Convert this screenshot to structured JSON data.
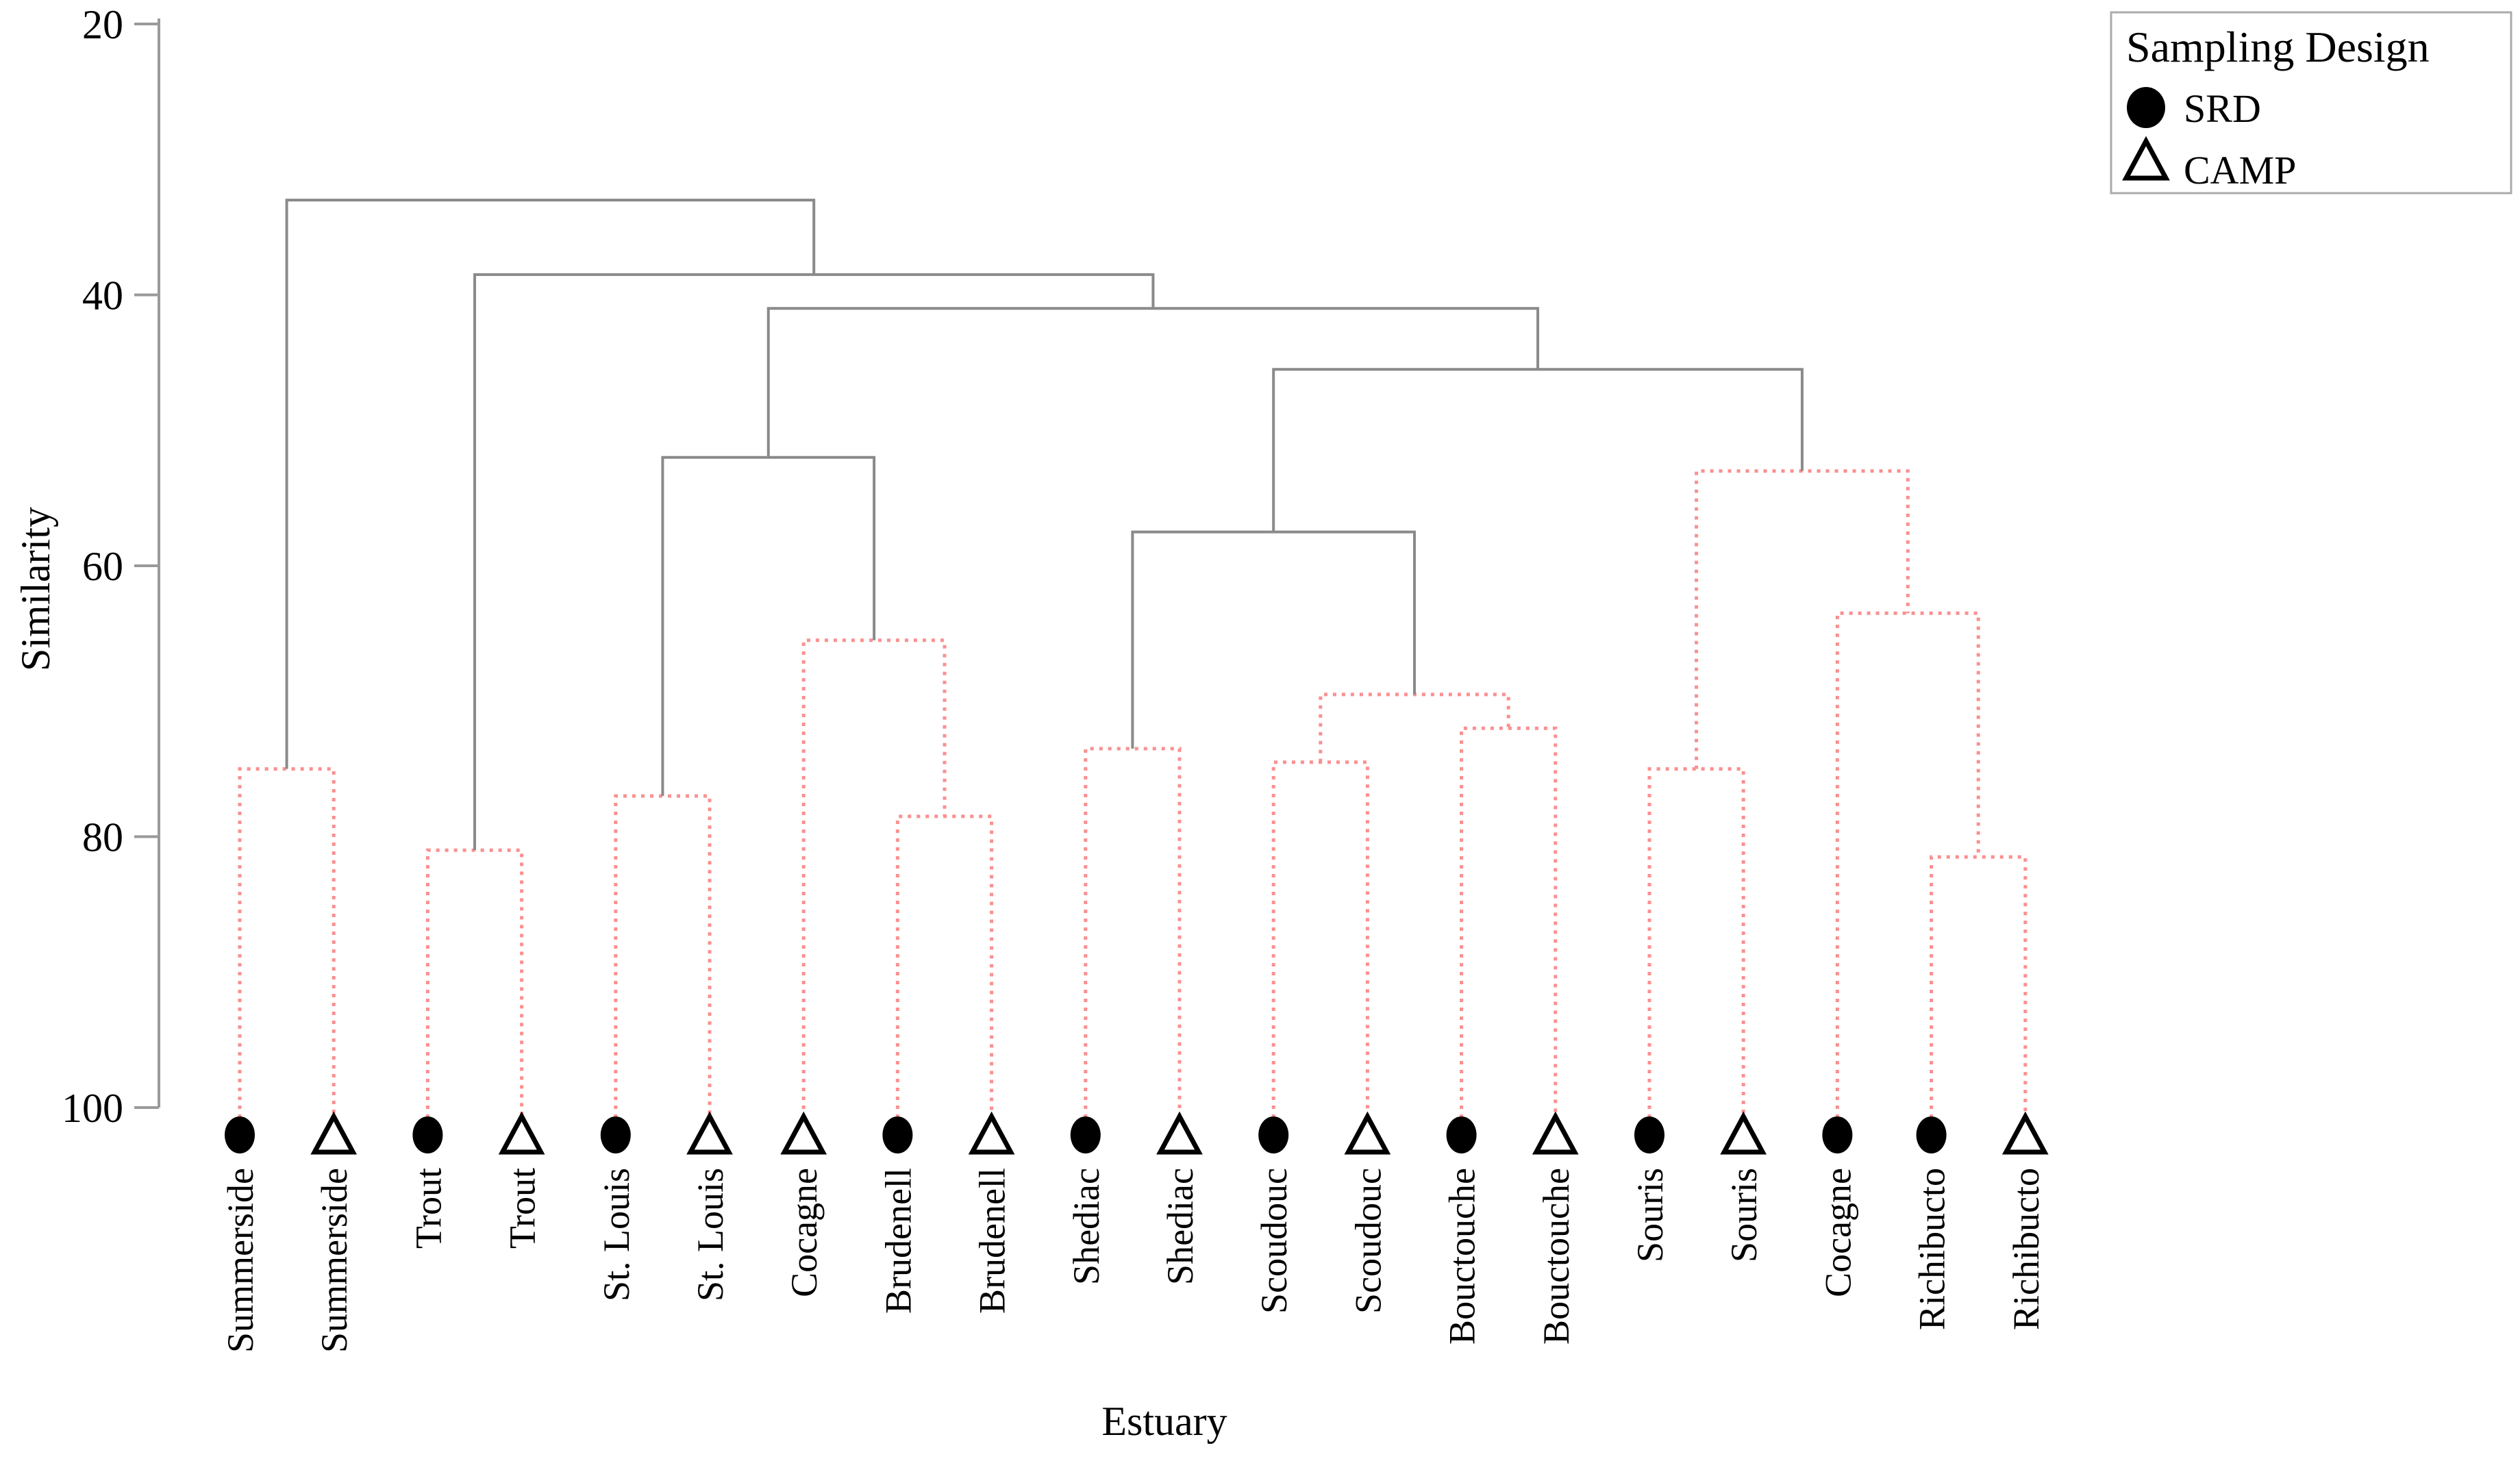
{
  "chart_data": {
    "type": "dendrogram",
    "title": "",
    "xlabel": "Estuary",
    "ylabel": "Similarity",
    "y_axis": {
      "min": 20,
      "max": 100,
      "ticks": [
        20,
        40,
        60,
        80,
        100
      ],
      "inverted": true,
      "grid": false
    },
    "legend": {
      "title": "Sampling Design",
      "position": "top-right",
      "entries": [
        {
          "marker": "filled-circle",
          "label": "SRD"
        },
        {
          "marker": "open-triangle",
          "label": "CAMP"
        }
      ]
    },
    "colors": {
      "marker": "#000000",
      "significant_branch": "#8a8a8a",
      "non_significant_branch": "#fb9090",
      "axis": "#9a9a9a",
      "legend_border": "#ababab",
      "text": "#000000"
    },
    "leaves": [
      {
        "label": "Summerside",
        "design": "SRD"
      },
      {
        "label": "Summerside",
        "design": "CAMP"
      },
      {
        "label": "Trout",
        "design": "SRD"
      },
      {
        "label": "Trout",
        "design": "CAMP"
      },
      {
        "label": "St. Louis",
        "design": "SRD"
      },
      {
        "label": "St. Louis",
        "design": "CAMP"
      },
      {
        "label": "Cocagne",
        "design": "CAMP"
      },
      {
        "label": "Brudenell",
        "design": "SRD"
      },
      {
        "label": "Brudenell",
        "design": "CAMP"
      },
      {
        "label": "Shediac",
        "design": "SRD"
      },
      {
        "label": "Shediac",
        "design": "CAMP"
      },
      {
        "label": "Scoudouc",
        "design": "SRD"
      },
      {
        "label": "Scoudouc",
        "design": "CAMP"
      },
      {
        "label": "Bouctouche",
        "design": "SRD"
      },
      {
        "label": "Bouctouche",
        "design": "CAMP"
      },
      {
        "label": "Souris",
        "design": "SRD"
      },
      {
        "label": "Souris",
        "design": "CAMP"
      },
      {
        "label": "Cocagne",
        "design": "SRD"
      },
      {
        "label": "Richibucto",
        "design": "SRD"
      },
      {
        "label": "Richibucto",
        "design": "CAMP"
      }
    ],
    "merges": [
      {
        "id": "M0",
        "a": "L0",
        "b": "L1",
        "similarity": 75,
        "style": "red"
      },
      {
        "id": "M1",
        "a": "L2",
        "b": "L3",
        "similarity": 81,
        "style": "red"
      },
      {
        "id": "M2",
        "a": "L4",
        "b": "L5",
        "similarity": 77,
        "style": "red"
      },
      {
        "id": "M3",
        "a": "L7",
        "b": "L8",
        "similarity": 78.5,
        "style": "red"
      },
      {
        "id": "M4",
        "a": "L6",
        "b": "M3",
        "similarity": 65.5,
        "style": "red"
      },
      {
        "id": "M5",
        "a": "M2",
        "b": "M4",
        "similarity": 52,
        "style": "gray"
      },
      {
        "id": "M6",
        "a": "L9",
        "b": "L10",
        "similarity": 73.5,
        "style": "red"
      },
      {
        "id": "M7",
        "a": "L11",
        "b": "L12",
        "similarity": 74.5,
        "style": "red"
      },
      {
        "id": "M8",
        "a": "L13",
        "b": "L14",
        "similarity": 72,
        "style": "red"
      },
      {
        "id": "M9",
        "a": "M7",
        "b": "M8",
        "similarity": 69.5,
        "style": "red"
      },
      {
        "id": "M10",
        "a": "M6",
        "b": "M9",
        "similarity": 57.5,
        "style": "gray"
      },
      {
        "id": "M11",
        "a": "L15",
        "b": "L16",
        "similarity": 75,
        "style": "red"
      },
      {
        "id": "M12",
        "a": "L18",
        "b": "L19",
        "similarity": 81.5,
        "style": "red"
      },
      {
        "id": "M13",
        "a": "L17",
        "b": "M12",
        "similarity": 63.5,
        "style": "red"
      },
      {
        "id": "M14",
        "a": "M11",
        "b": "M13",
        "similarity": 53,
        "style": "red"
      },
      {
        "id": "M15",
        "a": "M10",
        "b": "M14",
        "similarity": 45.5,
        "style": "gray"
      },
      {
        "id": "M16",
        "a": "M5",
        "b": "M15",
        "similarity": 41,
        "style": "gray"
      },
      {
        "id": "M17",
        "a": "M1",
        "b": "M16",
        "similarity": 38.5,
        "style": "gray"
      },
      {
        "id": "M18",
        "a": "M0",
        "b": "M17",
        "similarity": 33,
        "style": "gray"
      }
    ]
  }
}
